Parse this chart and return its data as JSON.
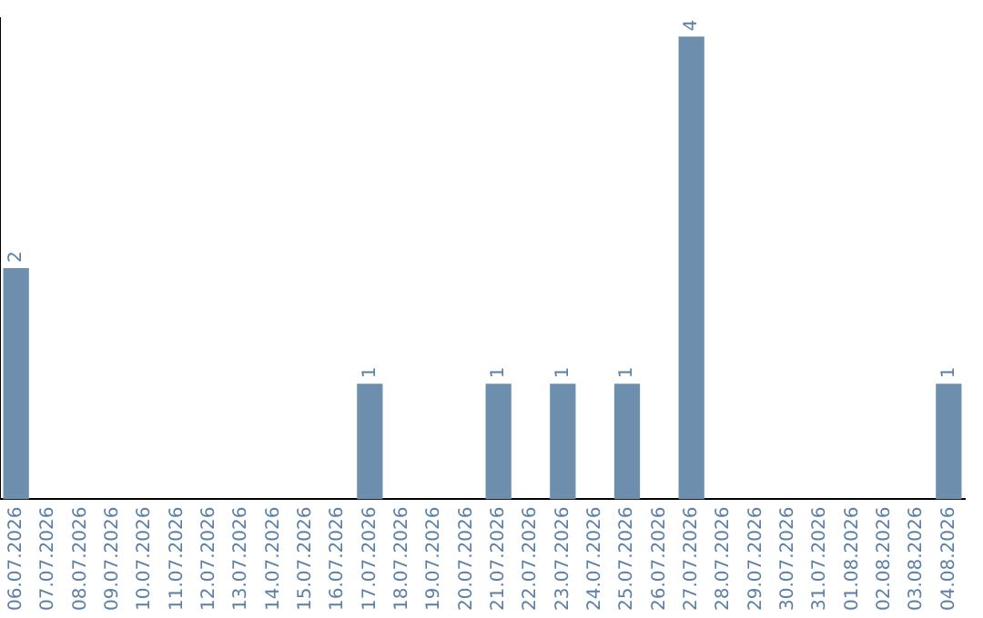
{
  "chart_data": {
    "type": "bar",
    "categories": [
      "06.07.2026",
      "07.07.2026",
      "08.07.2026",
      "09.07.2026",
      "10.07.2026",
      "11.07.2026",
      "12.07.2026",
      "13.07.2026",
      "14.07.2026",
      "15.07.2026",
      "16.07.2026",
      "17.07.2026",
      "18.07.2026",
      "19.07.2026",
      "20.07.2026",
      "21.07.2026",
      "22.07.2026",
      "23.07.2026",
      "24.07.2026",
      "25.07.2026",
      "26.07.2026",
      "27.07.2026",
      "28.07.2026",
      "29.07.2026",
      "30.07.2026",
      "31.07.2026",
      "01.08.2026",
      "02.08.2026",
      "03.08.2026",
      "04.08.2026"
    ],
    "values": [
      2,
      0,
      0,
      0,
      0,
      0,
      0,
      0,
      0,
      0,
      0,
      1,
      0,
      0,
      0,
      1,
      0,
      1,
      0,
      1,
      0,
      4,
      0,
      0,
      0,
      0,
      0,
      0,
      0,
      1
    ],
    "value_labels": [
      "2",
      null,
      null,
      null,
      null,
      null,
      null,
      null,
      null,
      null,
      null,
      "1",
      null,
      null,
      null,
      "1",
      null,
      "1",
      null,
      "1",
      null,
      "4",
      null,
      null,
      null,
      null,
      null,
      null,
      null,
      "1"
    ],
    "color": "#6d8fad",
    "grid": false,
    "legend": false,
    "tick_labels": "x"
  }
}
